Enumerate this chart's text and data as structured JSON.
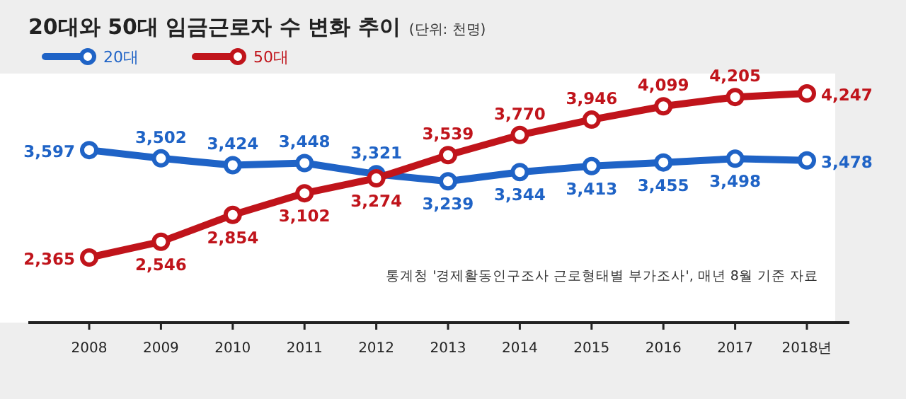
{
  "chart_data": {
    "type": "line",
    "title": "20대와 50대 임금근로자 수 변화 추이",
    "subtitle": "(단위: 천명)",
    "categories": [
      "2008",
      "2009",
      "2010",
      "2011",
      "2012",
      "2013",
      "2014",
      "2015",
      "2016",
      "2017",
      "2018년"
    ],
    "series": [
      {
        "name": "20대",
        "color": "#1f63c6",
        "values": [
          3597,
          3502,
          3424,
          3448,
          3321,
          3239,
          3344,
          3413,
          3455,
          3498,
          3478
        ],
        "value_labels": [
          "3,597",
          "3,502",
          "3,424",
          "3,448",
          "3,321",
          "3,239",
          "3,344",
          "3,413",
          "3,455",
          "3,498",
          "3,478"
        ]
      },
      {
        "name": "50대",
        "color": "#c0141b",
        "values": [
          2365,
          2546,
          2854,
          3102,
          3274,
          3539,
          3770,
          3946,
          4099,
          4205,
          4247
        ],
        "value_labels": [
          "2,365",
          "2,546",
          "2,854",
          "3,102",
          "3,274",
          "3,539",
          "3,770",
          "3,946",
          "4,099",
          "4,205",
          "4,247"
        ]
      }
    ],
    "annotations": [
      "통계청 '경제활동인구조사 근로형태별 부가조사', 매년 8월 기준 자료"
    ],
    "legend": "top left",
    "marker": "circle",
    "line_style": "solid"
  }
}
